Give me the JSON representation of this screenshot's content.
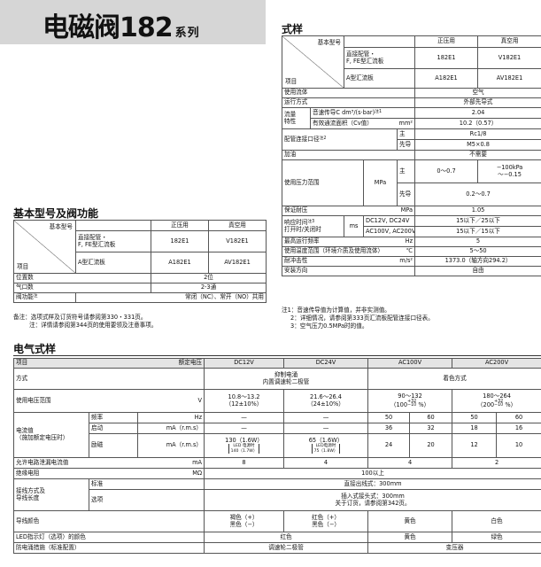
{
  "header": {
    "title": "电磁阀182",
    "series": "系列"
  },
  "spec": {
    "title": "式样",
    "item_label": "项目",
    "model_label": "基本型号",
    "columns": [
      "正压用",
      "真空用"
    ],
    "models": [
      [
        "直接配管・",
        "F, FE型汇流板",
        "182E1",
        "V182E1"
      ],
      [
        "A型汇流板",
        "A182E1",
        "AV182E1"
      ]
    ],
    "rows": [
      [
        "使用流体",
        "空气"
      ],
      [
        "运行方式",
        "外部先导式"
      ],
      [
        "流量",
        "特性",
        "音速传导C dm³/(s·bar)",
        "注1",
        "2.04"
      ],
      [
        "有效通流面积（Cv值）",
        "mm²",
        "10.2（0.57）"
      ],
      [
        "配管连接口径",
        "注2",
        "主",
        "Rc1/8"
      ],
      [
        "先导",
        "M5×0.8"
      ],
      [
        "加油",
        "不需要"
      ],
      [
        "使用压力范围",
        "MPa",
        "主",
        "0～0.7",
        "−100kPa",
        "～−0.15"
      ],
      [
        "先导",
        "0.2～0.7"
      ],
      [
        "保证耐压",
        "MPa",
        "1.05"
      ],
      [
        "响应时间",
        "注3",
        "ms",
        "DC12V, DC24V",
        "15以下／25以下"
      ],
      [
        "打开时/关闭时",
        "AC100V, AC200V",
        "15以下／15以下"
      ],
      [
        "最高运行频率",
        "Hz",
        "5"
      ],
      [
        "使用温度范围（环境介质及使用流体）",
        "℃",
        "5～50"
      ],
      [
        "耐冲击性",
        "m/s²",
        "1373.0（轴方向294.2）"
      ],
      [
        "安装方向",
        "自由"
      ]
    ],
    "notes": [
      "注1：音速传导值为计算值，并非实测值。",
      "2：详细情况，请参阅第333页汇流板配管连接口径表。",
      "3：空气压力0.5MPa时的值。"
    ]
  },
  "basic": {
    "title": "基本型号及阀功能",
    "item_label": "项目",
    "model_label": "基本型号",
    "columns": [
      "正压用",
      "真空用"
    ],
    "models": [
      [
        "直接配管・",
        "F, FE型汇流板",
        "182E1",
        "V182E1"
      ],
      [
        "A型汇流板",
        "A182E1",
        "AV182E1"
      ]
    ],
    "rows": [
      [
        "位置数",
        "2位"
      ],
      [
        "气口数",
        "2-3通"
      ],
      [
        "阀功能",
        "注",
        "常闭（NC）、常开（NO）共用"
      ]
    ],
    "notes": [
      "备注：选项式样及订货符号请参阅第330・331页。",
      "注：详情请参阅第344页的使用要领及注意事项。"
    ]
  },
  "electrical": {
    "title": "电气式样",
    "item_label": "项目",
    "voltage_label": "额定电压",
    "voltages": [
      "DC12V",
      "DC24V",
      "AC100V",
      "AC200V"
    ],
    "rows": {
      "method": [
        "方式",
        "抑制电涌",
        "内置调速轮二极管",
        "着色方式"
      ],
      "range": [
        "使用电压范围",
        "V",
        "10.8～13.2",
        "（12±10%）",
        "21.6～26.4",
        "（24±10%）",
        "90～132",
        "（100",
        "+32",
        "−10",
        "%）",
        "180～264",
        "（200",
        "+32",
        "−10",
        "%）"
      ],
      "current_label": [
        "电流值",
        "（施加额定电压时）"
      ],
      "frequency": [
        "频率",
        "Hz",
        "—",
        "—",
        "50",
        "60",
        "50",
        "60"
      ],
      "inrush": [
        "启动",
        "mA（r.m.s）",
        "—",
        "—",
        "36",
        "32",
        "18",
        "16"
      ],
      "holding": [
        "励磁",
        "mA（r.m.s）",
        "130（1.6W）",
        "LED 电源时",
        "140（1.7W）",
        "65（1.6W）",
        "LED电源时",
        "75（1.8W）",
        "24",
        "20",
        "12",
        "10"
      ],
      "leakage": [
        "允许电路泄漏电流值",
        "mA",
        "8",
        "4",
        "4",
        "2"
      ],
      "insulation": [
        "绝缘电阻",
        "MΩ",
        "100以上"
      ],
      "wiring": [
        "接线方式及",
        "导线长度",
        "标准",
        "直接出线式：300mm",
        "选项",
        "插入式接头式：300mm",
        "关于订货，请参阅第342页。"
      ],
      "lead": [
        "导线颜色",
        "褐色（+）",
        "黑色（−）",
        "红色（+）",
        "黑色（−）",
        "黄色",
        "白色"
      ],
      "led": [
        "LED指示灯（选项）的颜色",
        "红色",
        "黄色",
        "绿色"
      ],
      "surge": [
        "防电涌措施（标准配置）",
        "调速轮二极管",
        "变压器"
      ]
    }
  }
}
